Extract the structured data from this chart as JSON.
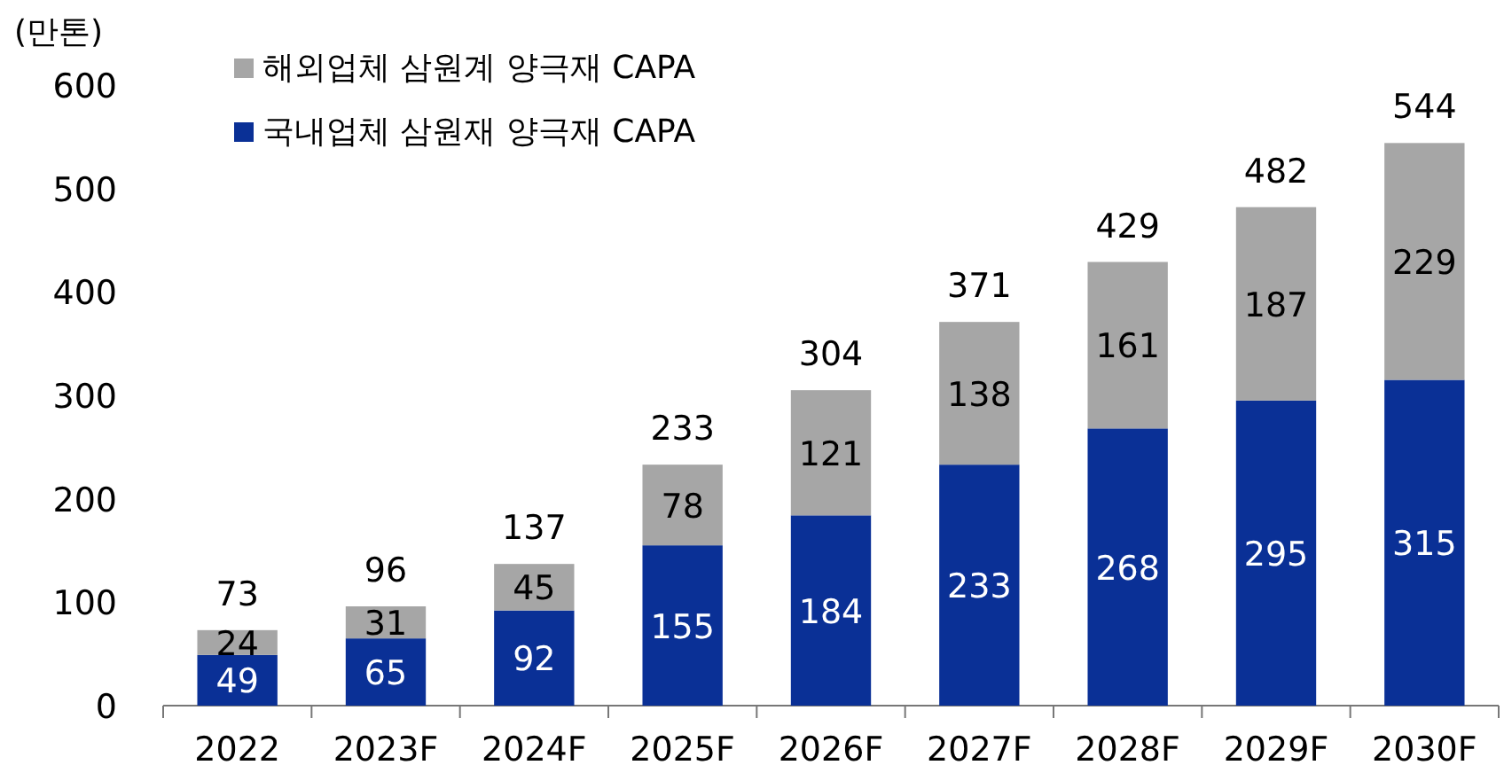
{
  "chart_data": {
    "type": "bar",
    "stacked": true,
    "ylabel": "(만톤)",
    "categories": [
      "2022",
      "2023F",
      "2024F",
      "2025F",
      "2026F",
      "2027F",
      "2028F",
      "2029F",
      "2030F"
    ],
    "series": [
      {
        "name": "국내업체 삼원재 양극재 CAPA",
        "color": "#0a3096",
        "values": [
          49,
          65,
          92,
          155,
          184,
          233,
          268,
          295,
          315
        ]
      },
      {
        "name": "해외업체 삼원계 양극재 CAPA",
        "color": "#a6a6a6",
        "values": [
          24,
          31,
          45,
          78,
          121,
          138,
          161,
          187,
          229
        ]
      }
    ],
    "totals": [
      "73",
      "96",
      "137",
      "233",
      "304",
      "371",
      "429",
      "482",
      "544"
    ],
    "ylim": [
      0,
      600
    ],
    "yticks": [
      0,
      100,
      200,
      300,
      400,
      500,
      600
    ],
    "data_labels": true,
    "legend": "top left",
    "grid": false
  }
}
